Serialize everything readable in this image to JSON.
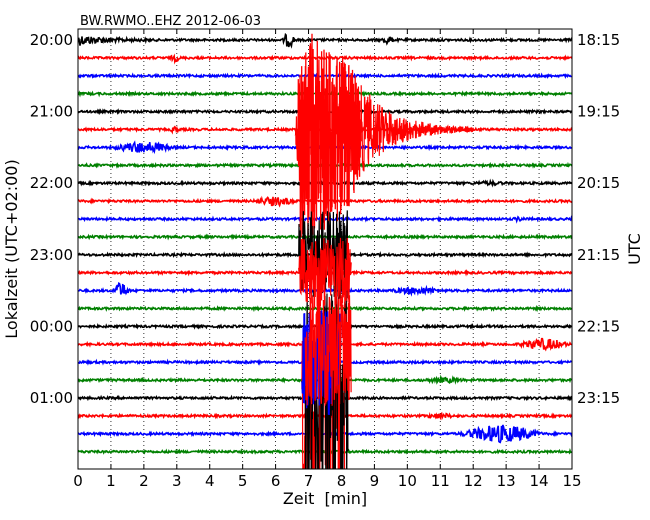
{
  "chart_data": {
    "type": "line",
    "title": "BW.RWMO..EHZ 2012-06-03",
    "xlabel": "Zeit  [min]",
    "ylabel_left": "Lokalzeit (UTC+02:00)",
    "ylabel_right": "UTC",
    "xlim": [
      0,
      15
    ],
    "x_ticks": [
      "0",
      "1",
      "2",
      "3",
      "4",
      "5",
      "6",
      "7",
      "8",
      "9",
      "10",
      "11",
      "12",
      "13",
      "14",
      "15"
    ],
    "grid": "vertical dotted",
    "row_count": 24,
    "row_minutes": 15,
    "left_hour_labels": [
      {
        "row": 0,
        "label": "20:00"
      },
      {
        "row": 4,
        "label": "21:00"
      },
      {
        "row": 8,
        "label": "22:00"
      },
      {
        "row": 12,
        "label": "23:00"
      },
      {
        "row": 16,
        "label": "00:00"
      },
      {
        "row": 20,
        "label": "01:00"
      }
    ],
    "right_hour_labels": [
      {
        "row": 0,
        "label": "18:15"
      },
      {
        "row": 4,
        "label": "19:15"
      },
      {
        "row": 8,
        "label": "20:15"
      },
      {
        "row": 12,
        "label": "21:15"
      },
      {
        "row": 16,
        "label": "22:15"
      },
      {
        "row": 20,
        "label": "23:15"
      }
    ],
    "trace_colors": [
      "#000000",
      "#ff0000",
      "#0000ff",
      "#008000"
    ],
    "events": [
      {
        "row": 0,
        "t_start": 0.0,
        "t_end": 2.2,
        "amp": 0.55,
        "kind": "decay"
      },
      {
        "row": 0,
        "t_start": 6.2,
        "t_end": 6.6,
        "amp": 0.7,
        "kind": "burst"
      },
      {
        "row": 0,
        "t_start": 9.2,
        "t_end": 9.6,
        "amp": 0.35,
        "kind": "burst"
      },
      {
        "row": 1,
        "t_start": 2.8,
        "t_end": 3.1,
        "amp": 0.3,
        "kind": "burst"
      },
      {
        "row": 5,
        "t_start": 2.8,
        "t_end": 3.1,
        "amp": 0.3,
        "kind": "burst"
      },
      {
        "row": 6,
        "t_start": 1.0,
        "t_end": 3.0,
        "amp": 0.55,
        "kind": "spindle"
      },
      {
        "row": 9,
        "t_start": 5.3,
        "t_end": 6.7,
        "amp": 0.4,
        "kind": "spindle"
      },
      {
        "row": 10,
        "t_start": 13.2,
        "t_end": 13.6,
        "amp": 0.15,
        "kind": "burst"
      },
      {
        "row": 8,
        "t_start": 12.0,
        "t_end": 13.0,
        "amp": 0.12,
        "kind": "spindle"
      },
      {
        "row": 14,
        "t_start": 1.0,
        "t_end": 1.6,
        "amp": 0.8,
        "kind": "spindle"
      },
      {
        "row": 14,
        "t_start": 9.4,
        "t_end": 11.2,
        "amp": 0.3,
        "kind": "spindle"
      },
      {
        "row": 19,
        "t_start": 10.4,
        "t_end": 11.8,
        "amp": 0.2,
        "kind": "spindle"
      },
      {
        "row": 20,
        "t_start": 6.8,
        "t_end": 7.2,
        "amp": 0.15,
        "kind": "burst"
      },
      {
        "row": 17,
        "t_start": 13.3,
        "t_end": 15.0,
        "amp": 0.55,
        "kind": "spindle"
      },
      {
        "row": 21,
        "t_start": 10.5,
        "t_end": 11.5,
        "amp": 0.2,
        "kind": "spindle"
      },
      {
        "row": 22,
        "t_start": 11.5,
        "t_end": 14.2,
        "amp": 0.9,
        "kind": "spindle"
      },
      {
        "row": 21,
        "t_start": 6.8,
        "t_end": 8.1,
        "amp": 6.0,
        "kind": "clipped"
      },
      {
        "row": 20,
        "t_start": 6.9,
        "t_end": 8.2,
        "amp": 6.0,
        "kind": "clipped"
      },
      {
        "row": 18,
        "t_start": 6.8,
        "t_end": 8.0,
        "amp": 3.0,
        "kind": "clipped"
      },
      {
        "row": 17,
        "t_start": 6.9,
        "t_end": 8.3,
        "amp": 3.5,
        "kind": "clipped"
      },
      {
        "row": 12,
        "t_start": 6.7,
        "t_end": 8.2,
        "amp": 2.5,
        "kind": "clipped"
      },
      {
        "row": 13,
        "t_start": 6.7,
        "t_end": 8.3,
        "amp": 2.0,
        "kind": "clipped"
      }
    ],
    "main_quake": {
      "rows": [
        0,
        1,
        2,
        3,
        4,
        5,
        6,
        7,
        8,
        9,
        10,
        11,
        12,
        13,
        14,
        15,
        16,
        17,
        18,
        19,
        20,
        21,
        22,
        23
      ],
      "color_row": 1,
      "t_start": 6.6,
      "t_end": 8.6,
      "y_top_row": -0.8,
      "y_bottom_row": 11.5,
      "coda_row": 5,
      "coda_start": 8.6,
      "coda_end": 12.0
    }
  }
}
